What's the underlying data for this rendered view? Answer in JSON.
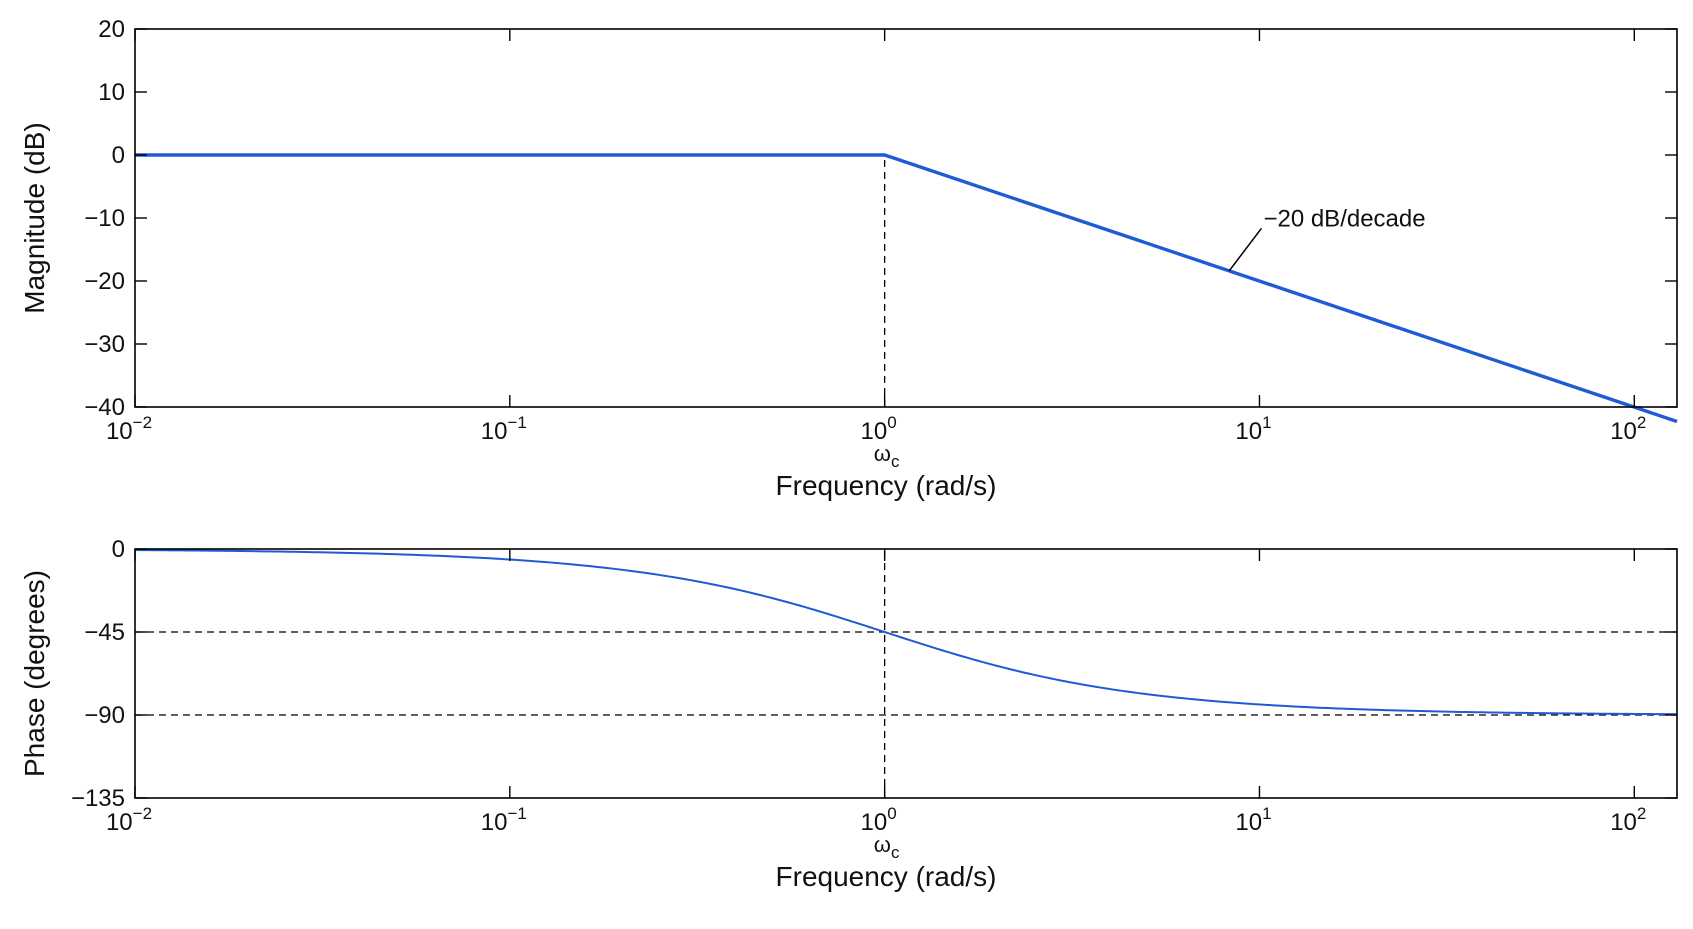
{
  "chart_data": [
    {
      "type": "line",
      "ylabel": "Magnitude (dB)",
      "xlabel": "Frequency (rad/s)",
      "xscale": "log",
      "xlim": [
        0.01,
        130
      ],
      "ylim": [
        -40,
        20
      ],
      "x_ticks": [
        0.01,
        0.1,
        1,
        10,
        100
      ],
      "x_tick_labels": [
        {
          "base": "10",
          "exp": "−2"
        },
        {
          "base": "10",
          "exp": "−1"
        },
        {
          "base": "10",
          "exp": "0"
        },
        {
          "base": "10",
          "exp": "1"
        },
        {
          "base": "10",
          "exp": "2"
        }
      ],
      "y_ticks": [
        20,
        10,
        0,
        -10,
        -20,
        -30,
        -40
      ],
      "y_tick_labels": [
        "20",
        "10",
        "0",
        "−10",
        "−20",
        "−30",
        "−40"
      ],
      "corner_label": {
        "main": "ω",
        "sub": "c"
      },
      "series": [
        {
          "x": [
            0.01,
            1,
            130
          ],
          "y": [
            0,
            0,
            -42.3
          ],
          "color": "#1f5bd6"
        }
      ],
      "guides": [
        {
          "orientation": "vertical",
          "x": 1,
          "y_from": -40,
          "y_to": 0
        }
      ],
      "annotation": {
        "text": "−20 dB/decade",
        "point": [
          8.3,
          -18.4
        ],
        "text_anchor": [
          10,
          -11
        ]
      },
      "grid": false
    },
    {
      "type": "line",
      "ylabel": "Phase (degrees)",
      "xlabel": "Frequency (rad/s)",
      "xscale": "log",
      "xlim": [
        0.01,
        130
      ],
      "ylim": [
        -135,
        0
      ],
      "x_ticks": [
        0.01,
        0.1,
        1,
        10,
        100
      ],
      "x_tick_labels": [
        {
          "base": "10",
          "exp": "−2"
        },
        {
          "base": "10",
          "exp": "−1"
        },
        {
          "base": "10",
          "exp": "0"
        },
        {
          "base": "10",
          "exp": "1"
        },
        {
          "base": "10",
          "exp": "2"
        }
      ],
      "y_ticks": [
        0,
        -45,
        -90,
        -135
      ],
      "y_tick_labels": [
        "0",
        "−45",
        "−90",
        "−135"
      ],
      "corner_label": {
        "main": "ω",
        "sub": "c"
      },
      "series": [
        {
          "function": "-atan(x) in degrees",
          "x": [
            0.01,
            0.03,
            0.1,
            0.2,
            0.3,
            0.5,
            0.7,
            1,
            1.5,
            2,
            3,
            5,
            10,
            20,
            50,
            130
          ],
          "y": [
            -0.57,
            -1.72,
            -5.71,
            -11.31,
            -16.7,
            -26.57,
            -34.99,
            -45,
            -56.31,
            -63.43,
            -71.57,
            -78.69,
            -84.29,
            -87.14,
            -88.85,
            -89.56
          ],
          "color": "#1f5bd6"
        }
      ],
      "guides": [
        {
          "orientation": "vertical",
          "x": 1,
          "y_from": -135,
          "y_to": 0
        },
        {
          "orientation": "horizontal",
          "y": -45
        },
        {
          "orientation": "horizontal",
          "y": -90
        }
      ],
      "grid": false
    }
  ]
}
